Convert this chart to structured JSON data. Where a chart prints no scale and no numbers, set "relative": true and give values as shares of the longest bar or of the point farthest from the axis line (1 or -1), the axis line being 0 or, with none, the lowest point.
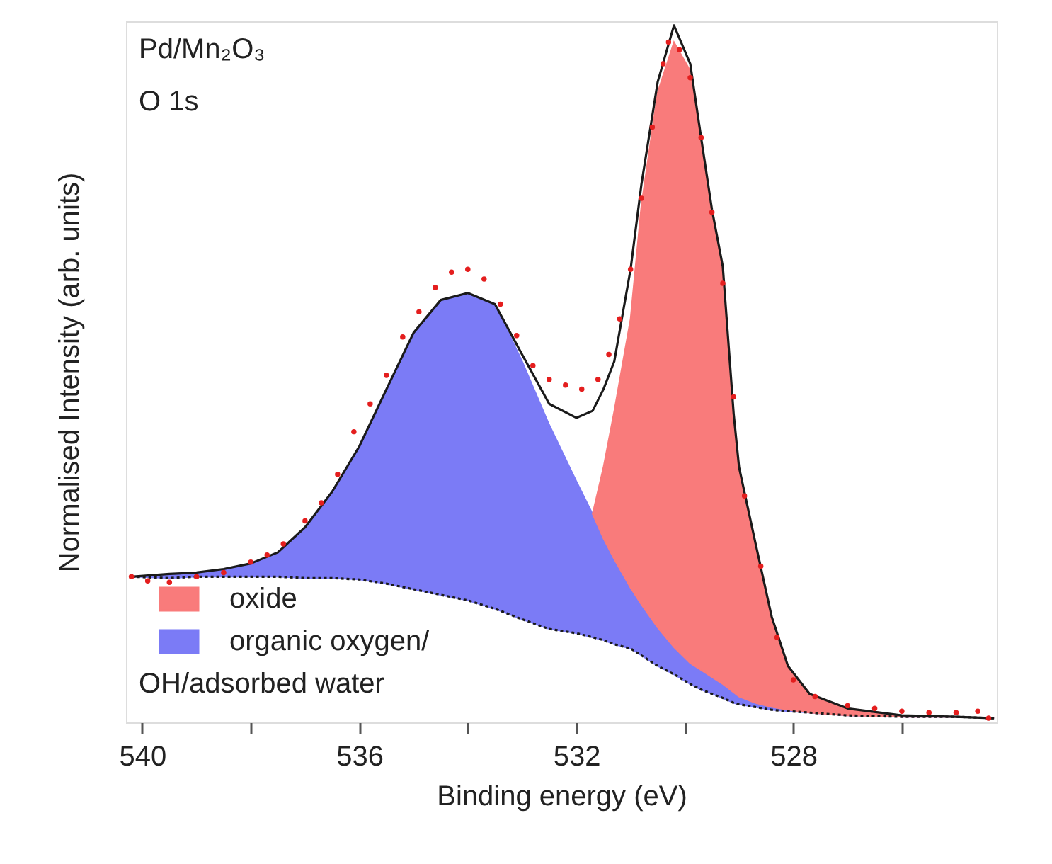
{
  "chart_data": {
    "type": "line",
    "relative": true,
    "xlabel": "Binding energy (eV)",
    "ylabel": "Normalised Intensity (arb. units)",
    "annotations": [
      "Pd/Mn₂O₃",
      "O 1s"
    ],
    "xlim": [
      540.3,
      524.25
    ],
    "xticks": [
      540,
      {
        "value": 538,
        "label": null
      },
      536,
      {
        "value": 534,
        "label": null
      },
      532,
      {
        "value": 530,
        "label": null
      },
      528,
      {
        "value": 526,
        "label": null
      }
    ],
    "grid": false,
    "legend": "bottom left",
    "tick_labels": "x",
    "x": [
      540.2,
      539.5,
      539,
      538.5,
      538,
      537.5,
      537,
      536.5,
      536,
      535.5,
      535,
      534.5,
      534,
      533.5,
      533,
      532.5,
      532,
      531.7,
      531.5,
      531.3,
      531,
      530.8,
      530.5,
      530.2,
      529.9,
      529.7,
      529.5,
      529.3,
      529.1,
      529,
      528.7,
      528.4,
      528.1,
      527.7,
      527,
      526,
      525,
      524.3
    ],
    "series": [
      {
        "type": "area",
        "name": "oxide",
        "color": "#f97b7b",
        "x": [
          531.7,
          531.5,
          531.3,
          531,
          530.8,
          530.5,
          530.2,
          529.9,
          529.7,
          529.5,
          529.3,
          529.1,
          529,
          528.7,
          528.4,
          528.1,
          527.7,
          527,
          526,
          525,
          524.3
        ],
        "values": [
          0.299,
          0.366,
          0.447,
          0.579,
          0.742,
          0.904,
          0.976,
          0.935,
          0.833,
          0.732,
          0.652,
          0.441,
          0.366,
          0.258,
          0.152,
          0.081,
          0.041,
          0.02,
          0.01,
          0.008,
          0.006
        ]
      },
      {
        "type": "area",
        "name": "organic oxygen/OH/adsorbed water",
        "color": "#7b7bf6",
        "values": [
          0.209,
          0.213,
          0.215,
          0.22,
          0.228,
          0.244,
          0.28,
          0.331,
          0.396,
          0.478,
          0.559,
          0.606,
          0.616,
          0.6,
          0.518,
          0.427,
          0.346,
          0.299,
          0.264,
          0.234,
          0.193,
          0.169,
          0.136,
          0.108,
          0.085,
          0.075,
          0.065,
          0.055,
          0.043,
          0.037,
          0.028,
          0.022,
          0.018,
          0.014,
          0.01,
          0.008,
          0.008,
          0.006
        ]
      },
      {
        "color": "#1a1a1a",
        "line_style": "dotted",
        "values": [
          0.209,
          0.207,
          0.209,
          0.209,
          0.209,
          0.209,
          0.207,
          0.207,
          0.205,
          0.199,
          0.191,
          0.183,
          0.175,
          0.163,
          0.148,
          0.134,
          0.128,
          0.122,
          0.118,
          0.112,
          0.106,
          0.096,
          0.081,
          0.069,
          0.055,
          0.047,
          0.041,
          0.035,
          0.028,
          0.026,
          0.022,
          0.018,
          0.016,
          0.014,
          0.01,
          0.008,
          0.008,
          0.006
        ]
      },
      {
        "color": "#1a1a1a",
        "line_style": "solid",
        "values": [
          0.209,
          0.213,
          0.215,
          0.22,
          0.228,
          0.244,
          0.28,
          0.331,
          0.396,
          0.478,
          0.559,
          0.606,
          0.616,
          0.6,
          0.528,
          0.457,
          0.437,
          0.447,
          0.478,
          0.518,
          0.65,
          0.772,
          0.919,
          1.0,
          0.945,
          0.839,
          0.736,
          0.654,
          0.443,
          0.366,
          0.258,
          0.152,
          0.081,
          0.041,
          0.02,
          0.01,
          0.008,
          0.006
        ]
      },
      {
        "type": "scatter",
        "color": "#e41e1e",
        "marker": "circle",
        "x": [
          540.2,
          539.9,
          539.5,
          539,
          538.5,
          538,
          537.7,
          537.4,
          537,
          536.7,
          536.4,
          536.1,
          535.8,
          535.5,
          535.2,
          534.9,
          534.6,
          534.3,
          534,
          533.7,
          533.4,
          533.1,
          532.8,
          532.5,
          532.2,
          531.9,
          531.6,
          531.4,
          531.2,
          531,
          530.8,
          530.6,
          530.4,
          530.3,
          530.1,
          529.9,
          529.7,
          529.5,
          529.3,
          529.1,
          528.9,
          528.6,
          528.3,
          528,
          527.6,
          527,
          526.5,
          526,
          525.5,
          525,
          524.6,
          524.4
        ],
        "values": [
          0.209,
          0.203,
          0.201,
          0.209,
          0.215,
          0.23,
          0.24,
          0.256,
          0.289,
          0.315,
          0.356,
          0.417,
          0.457,
          0.498,
          0.553,
          0.589,
          0.624,
          0.646,
          0.65,
          0.636,
          0.6,
          0.555,
          0.512,
          0.492,
          0.484,
          0.478,
          0.492,
          0.528,
          0.579,
          0.65,
          0.752,
          0.854,
          0.945,
          0.976,
          0.965,
          0.925,
          0.839,
          0.732,
          0.63,
          0.467,
          0.325,
          0.224,
          0.122,
          0.061,
          0.037,
          0.024,
          0.02,
          0.016,
          0.014,
          0.014,
          0.016,
          0.006
        ]
      }
    ]
  }
}
